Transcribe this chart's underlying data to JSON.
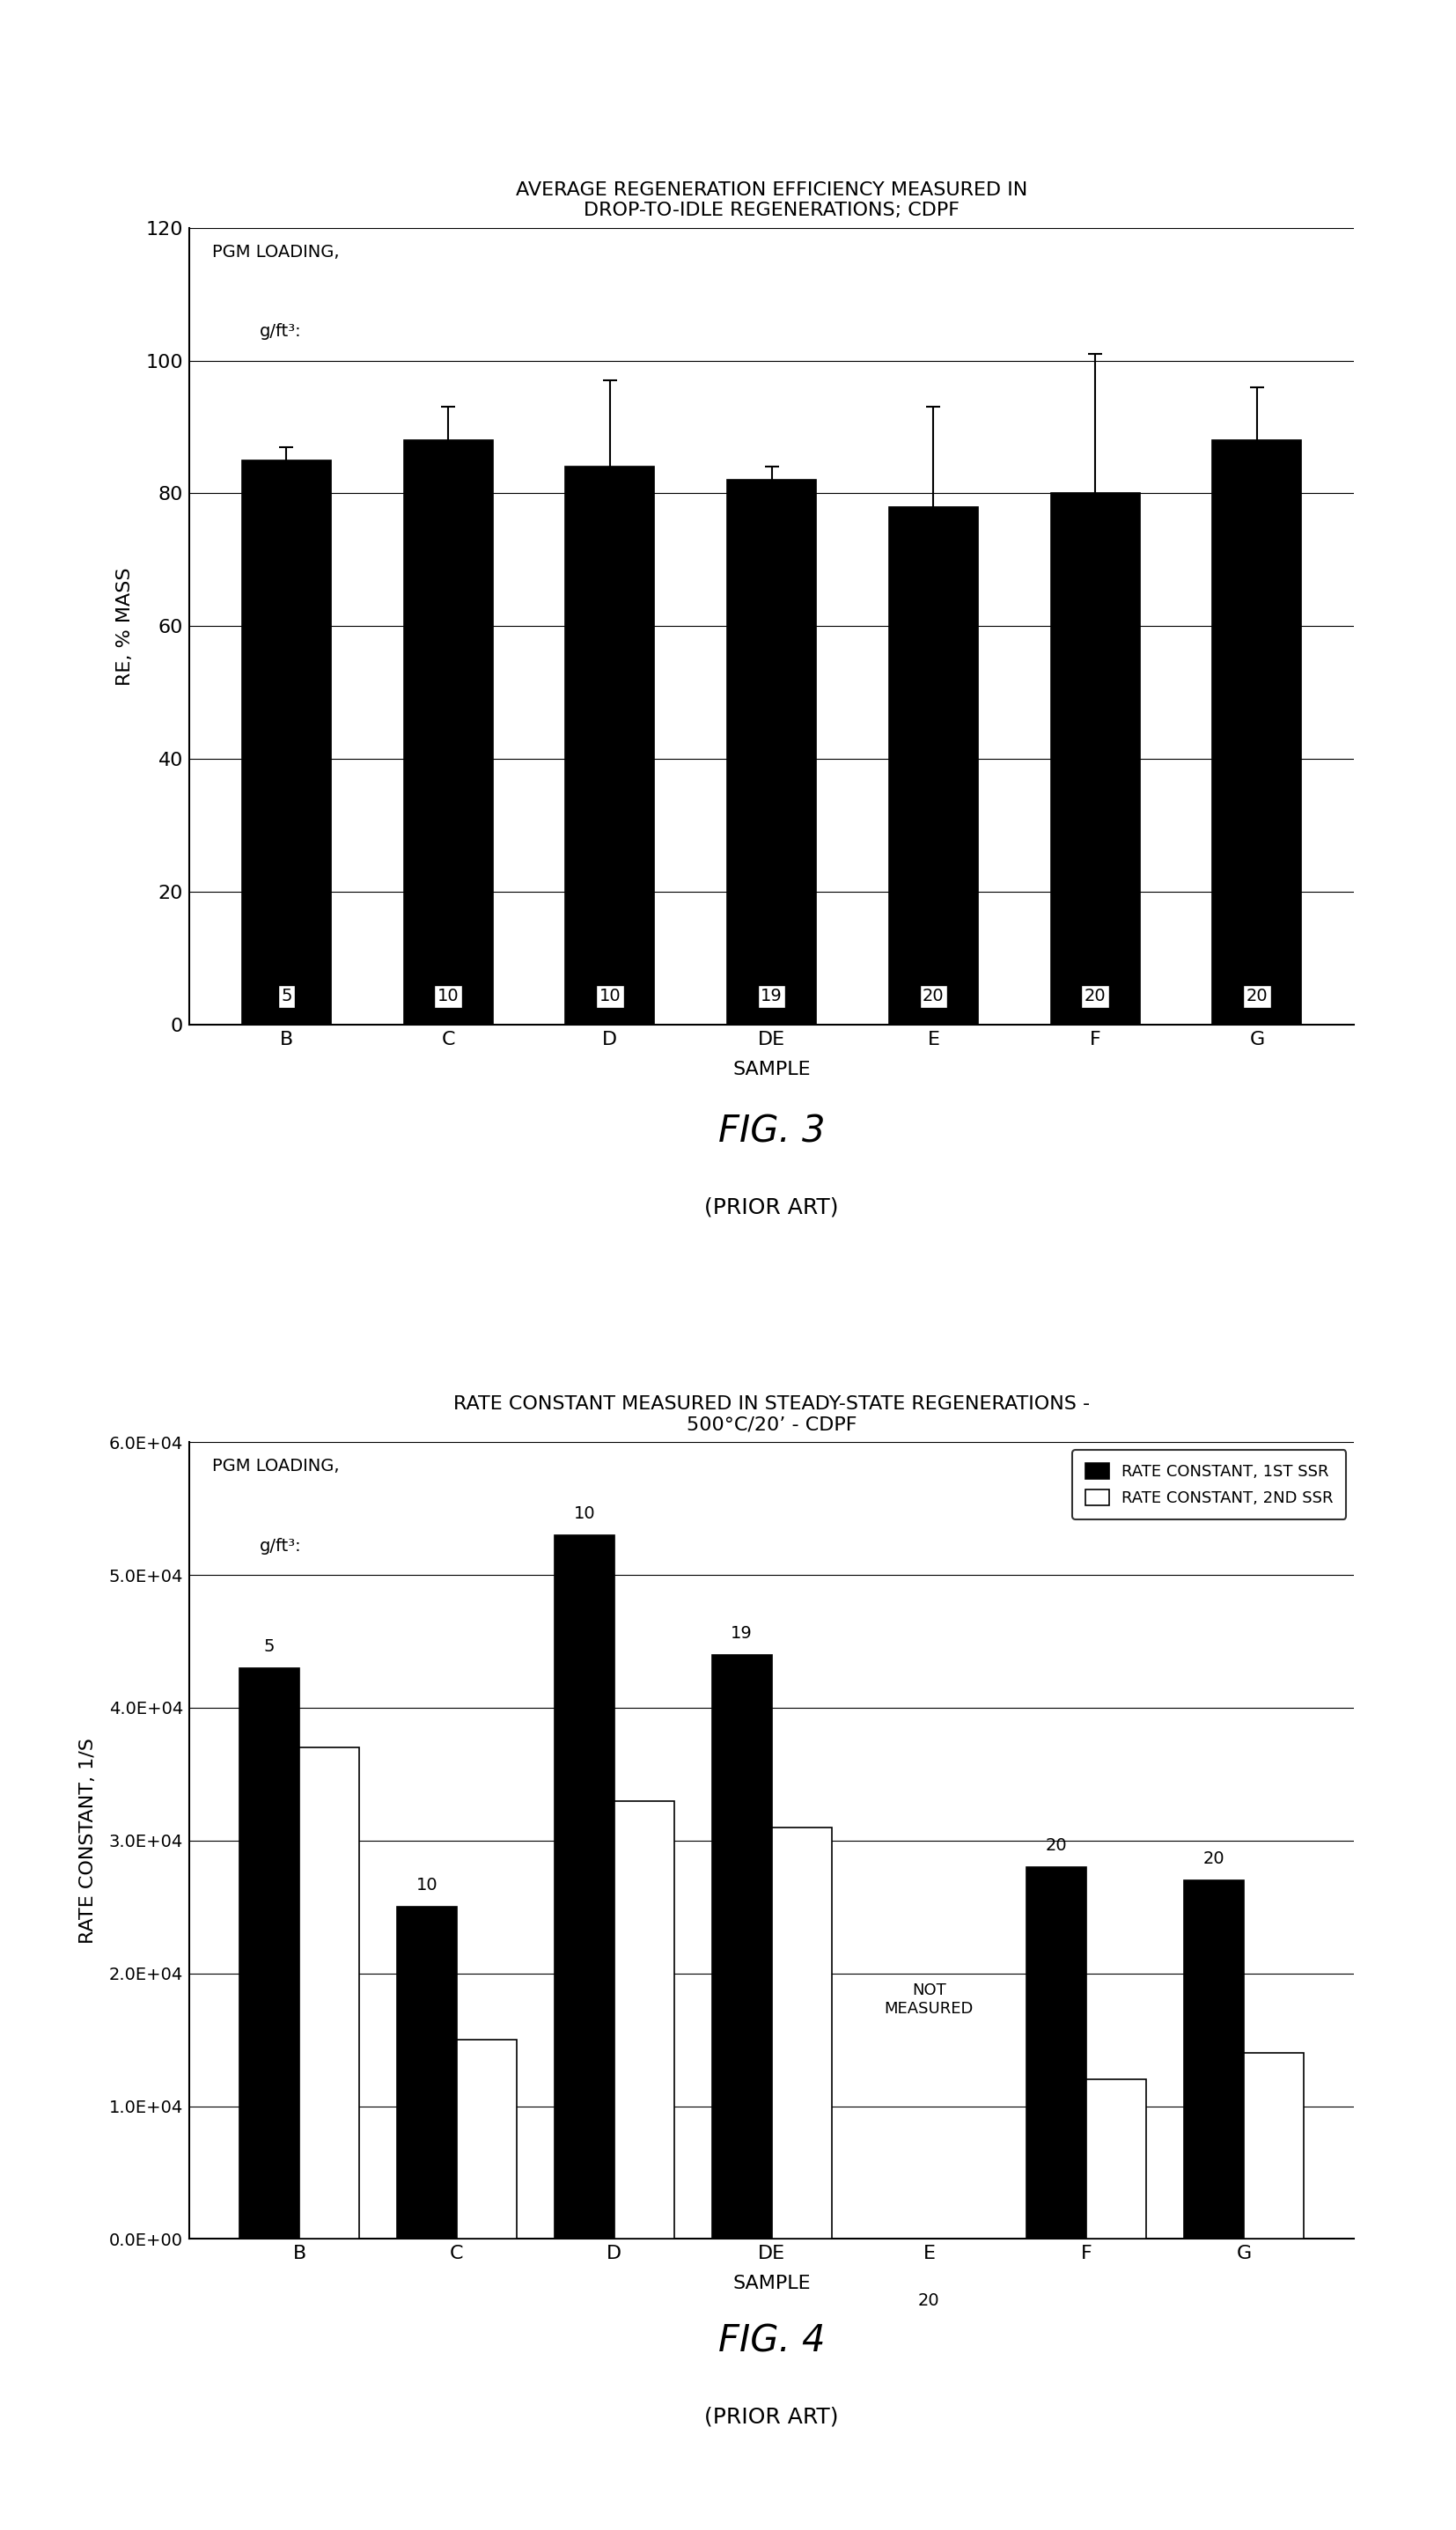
{
  "fig3": {
    "title": "AVERAGE REGENERATION EFFICIENCY MEASURED IN\nDROP-TO-IDLE REGENERATIONS; CDPF",
    "xlabel": "SAMPLE",
    "ylabel": "RE, % MASS",
    "categories": [
      "B",
      "C",
      "D",
      "DE",
      "E",
      "F",
      "G"
    ],
    "values": [
      85,
      88,
      84,
      82,
      78,
      80,
      88
    ],
    "errors_upper": [
      2,
      5,
      13,
      2,
      15,
      21,
      8
    ],
    "errors_lower": [
      2,
      2,
      2,
      2,
      2,
      2,
      2
    ],
    "n_labels": [
      "5",
      "10",
      "10",
      "19",
      "20",
      "20",
      "20"
    ],
    "ylim": [
      0,
      120
    ],
    "yticks": [
      0,
      20,
      40,
      60,
      80,
      100,
      120
    ],
    "pgm_label_line1": "PGM LOADING,",
    "pgm_label_line2": "g/ft³:",
    "bar_color": "#000000",
    "background_color": "#ffffff",
    "fig_label": "FIG. 3",
    "fig_sublabel": "(PRIOR ART)"
  },
  "fig4": {
    "title": "RATE CONSTANT MEASURED IN STEADY-STATE REGENERATIONS -\n500°C/20’ - CDPF",
    "xlabel": "SAMPLE",
    "ylabel": "RATE CONSTANT, 1/S",
    "categories": [
      "B",
      "C",
      "D",
      "DE",
      "E",
      "F",
      "G"
    ],
    "values_1st": [
      43000,
      25000,
      53000,
      44000,
      0,
      28000,
      27000
    ],
    "values_2nd": [
      37000,
      15000,
      33000,
      31000,
      0,
      12000,
      14000
    ],
    "n_labels": [
      "5",
      "10",
      "10",
      "19",
      "20",
      "20",
      "20"
    ],
    "not_measured_idx": 4,
    "ylim": [
      0,
      60000
    ],
    "yticks": [
      0,
      10000,
      20000,
      30000,
      40000,
      50000,
      60000
    ],
    "ytick_labels": [
      "0.0E+00",
      "1.0E+04",
      "2.0E+04",
      "3.0E+04",
      "4.0E+04",
      "5.0E+04",
      "6.0E+04"
    ],
    "pgm_label_line1": "PGM LOADING,",
    "pgm_label_line2": "g/ft³:",
    "bar_color_1st": "#000000",
    "bar_color_2nd": "#ffffff",
    "legend_label_1st": "RATE CONSTANT, 1ST SSR",
    "legend_label_2nd": "RATE CONSTANT, 2ND SSR",
    "background_color": "#ffffff",
    "fig_label": "FIG. 4",
    "fig_sublabel": "(PRIOR ART)"
  }
}
